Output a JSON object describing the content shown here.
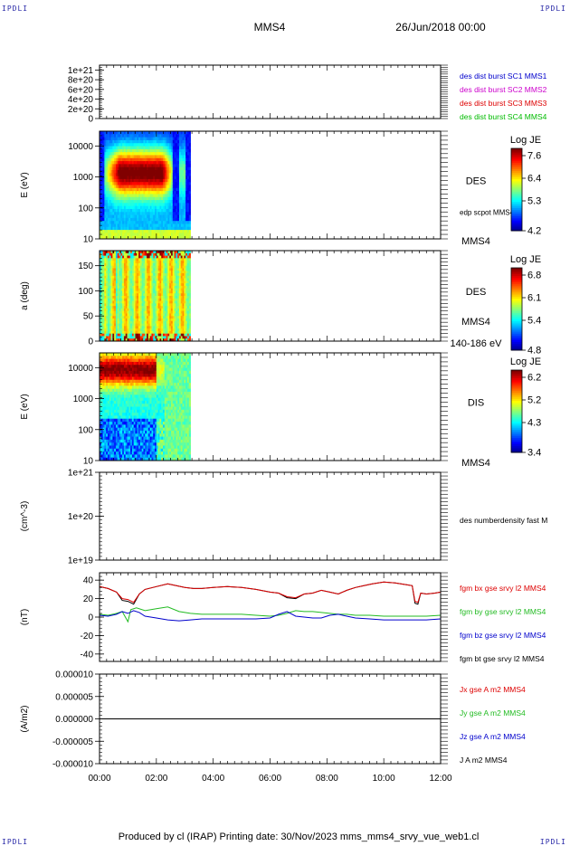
{
  "header": {
    "corner_tl": "IPDLI",
    "corner_tr": "IPDLI",
    "corner_bl": "IPDLI",
    "corner_br": "IPDLI",
    "spacecraft": "MMS4",
    "date": "26/Jun/2018 00:00"
  },
  "footer": {
    "text": "Produced by cl (IRAP)   Printing date: 30/Nov/2023   mms_mms4_srvy_vue_web1.cl"
  },
  "colors": {
    "mms1": "#0000cc",
    "mms2": "#cc00cc",
    "mms3": "#dd0000",
    "mms4": "#00bb00",
    "bx": "#dd0000",
    "by": "#22bb22",
    "bz": "#0000cc",
    "bt": "#000000"
  },
  "chart_data": [
    {
      "type": "line",
      "ytick_labels": [
        "1e+21",
        "8e+20",
        "6e+20",
        "4e+20",
        "2e+20",
        "0"
      ],
      "ylim": [
        0,
        1.1e+21
      ],
      "xlim": [
        0,
        12
      ],
      "legend": [
        "des dist burst SC1 MMS1",
        "des dist burst SC2 MMS2",
        "des dist burst SC3 MMS3",
        "des dist burst SC4 MMS4"
      ],
      "legend_colors": [
        "#0000cc",
        "#cc00cc",
        "#dd0000",
        "#00bb00"
      ],
      "baseline": 0
    },
    {
      "type": "heatmap",
      "ylabel": "E (eV)",
      "ytick_labels": [
        "10000",
        "1000",
        "100",
        "10"
      ],
      "ytick_values": [
        10000,
        1000,
        100,
        10
      ],
      "ylim": [
        10,
        30000
      ],
      "ylog": true,
      "data_xrange": [
        0,
        3.2
      ],
      "side_label": "DES",
      "side_sub": "edp scpot MMS4",
      "side_bottom": "MMS4",
      "colorbar_title": "Log JE",
      "colorbar_ticks": [
        "7.6",
        "6.4",
        "5.3",
        "4.2"
      ],
      "vrange": [
        4.2,
        7.6
      ]
    },
    {
      "type": "heatmap",
      "ylabel": "a (deg)",
      "ytick_labels": [
        "150",
        "100",
        "50",
        "0"
      ],
      "ytick_values": [
        150,
        100,
        50,
        0
      ],
      "ylim": [
        0,
        180
      ],
      "data_xrange": [
        0,
        3.2
      ],
      "side_label": "DES",
      "side_sub": "MMS4",
      "side_bottom": "140-186 eV",
      "colorbar_title": "Log JE",
      "colorbar_ticks": [
        "6.8",
        "6.1",
        "5.4",
        "4.8"
      ],
      "vrange": [
        4.8,
        6.8
      ]
    },
    {
      "type": "heatmap",
      "ylabel": "E (eV)",
      "ytick_labels": [
        "10000",
        "1000",
        "100",
        "10"
      ],
      "ytick_values": [
        10000,
        1000,
        100,
        10
      ],
      "ylim": [
        10,
        30000
      ],
      "ylog": true,
      "data_xrange": [
        0,
        3.2
      ],
      "side_label": "DIS",
      "side_bottom": "MMS4",
      "colorbar_title": "Log JE",
      "colorbar_ticks": [
        "6.2",
        "5.2",
        "4.3",
        "3.4"
      ],
      "vrange": [
        3.4,
        6.2
      ]
    },
    {
      "type": "line",
      "ylabel": "(cm^-3)",
      "ytick_labels": [
        "1e+21",
        "1e+20",
        "1e+19"
      ],
      "ytick_values": [
        1e+21,
        1e+20,
        1e+19
      ],
      "ylim": [
        1e+19,
        1e+21
      ],
      "ylog": true,
      "legend": [
        "des numberdensity fast M"
      ],
      "legend_colors": [
        "#000000"
      ]
    },
    {
      "type": "line",
      "ylabel": "(nT)",
      "ytick_labels": [
        "40",
        "20",
        "0",
        "-20",
        "-40"
      ],
      "ytick_values": [
        40,
        20,
        0,
        -20,
        -40
      ],
      "ylim": [
        -48,
        48
      ],
      "legend": [
        "fgm bx gse srvy l2 MMS4",
        "fgm by gse srvy l2 MMS4",
        "fgm bz gse srvy l2 MMS4",
        "fgm bt gse srvy l2 MMS4"
      ],
      "legend_colors": [
        "#dd0000",
        "#22bb22",
        "#0000cc",
        "#000000"
      ],
      "series": [
        {
          "name": "fgm bt gse srvy l2 MMS4",
          "key": "bt",
          "x": [
            0,
            0.3,
            0.6,
            0.8,
            1.0,
            1.2,
            1.4,
            1.6,
            2.0,
            2.4,
            2.7,
            3.0,
            3.3,
            3.6,
            4.0,
            4.5,
            5.0,
            5.5,
            6.0,
            6.3,
            6.6,
            6.9,
            7.2,
            7.5,
            7.8,
            8.1,
            8.4,
            8.7,
            9.0,
            9.3,
            9.6,
            10.0,
            10.4,
            10.8,
            11.0,
            11.1,
            11.2,
            11.3,
            11.5,
            11.8,
            12.0
          ],
          "y": [
            33,
            31,
            27,
            18,
            17,
            14,
            25,
            30,
            33,
            36,
            34,
            32,
            31,
            31,
            32,
            33,
            32,
            30,
            27,
            26,
            21,
            20,
            25,
            26,
            29,
            27,
            25,
            29,
            32,
            34,
            36,
            38,
            37,
            35,
            34,
            15,
            14,
            26,
            25,
            26,
            27
          ]
        },
        {
          "name": "fgm bx gse srvy l2 MMS4",
          "key": "bx",
          "x": [
            0,
            0.3,
            0.6,
            0.8,
            1.0,
            1.2,
            1.4,
            1.6,
            2.0,
            2.4,
            2.7,
            3.0,
            3.3,
            3.6,
            4.0,
            4.5,
            5.0,
            5.5,
            6.0,
            6.3,
            6.6,
            6.9,
            7.2,
            7.5,
            7.8,
            8.1,
            8.4,
            8.7,
            9.0,
            9.3,
            9.6,
            10.0,
            10.4,
            10.8,
            11.0,
            11.1,
            11.2,
            11.3,
            11.5,
            11.8,
            12.0
          ],
          "y": [
            33,
            31,
            27,
            20,
            19,
            16,
            25,
            30,
            33,
            36,
            34,
            32,
            31,
            31,
            32,
            33,
            32,
            30,
            27,
            26,
            22,
            21,
            25,
            26,
            29,
            27,
            25,
            29,
            32,
            34,
            36,
            38,
            37,
            35,
            34,
            17,
            16,
            26,
            25,
            26,
            27
          ]
        },
        {
          "name": "fgm by gse srvy l2 MMS4",
          "key": "by",
          "x": [
            0,
            0.3,
            0.6,
            0.8,
            1.0,
            1.1,
            1.3,
            1.6,
            2.0,
            2.4,
            2.8,
            3.2,
            3.6,
            4.0,
            4.5,
            5.0,
            5.5,
            6.0,
            6.3,
            6.6,
            6.9,
            7.2,
            7.5,
            7.8,
            8.1,
            8.4,
            8.7,
            9.0,
            9.5,
            10.0,
            10.5,
            11.0,
            11.5,
            12.0
          ],
          "y": [
            3,
            2,
            4,
            6,
            -5,
            8,
            10,
            7,
            9,
            11,
            6,
            4,
            3,
            3,
            3,
            3,
            2,
            1,
            2,
            4,
            7,
            6,
            6,
            5,
            4,
            3,
            3,
            2,
            2,
            1,
            1,
            1,
            1,
            2
          ]
        },
        {
          "name": "fgm bz gse srvy l2 MMS4",
          "key": "bz",
          "x": [
            0,
            0.3,
            0.6,
            0.8,
            1.0,
            1.2,
            1.4,
            1.6,
            2.0,
            2.4,
            2.8,
            3.2,
            3.6,
            4.0,
            4.5,
            5.0,
            5.5,
            6.0,
            6.3,
            6.6,
            6.9,
            7.2,
            7.5,
            7.8,
            8.1,
            8.4,
            8.7,
            9.0,
            9.5,
            10.0,
            10.5,
            11.0,
            11.5,
            12.0
          ],
          "y": [
            2,
            1,
            3,
            6,
            4,
            7,
            5,
            1,
            -1,
            -3,
            -4,
            -3,
            -2,
            -2,
            -2,
            -2,
            -2,
            -1,
            3,
            6,
            1,
            0,
            -1,
            -1,
            2,
            3,
            1,
            -1,
            -2,
            -3,
            -3,
            -3,
            -3,
            -2
          ]
        }
      ]
    },
    {
      "type": "line",
      "ylabel": "(A/m2)",
      "ytick_labels": [
        "0.000010",
        "0.000005",
        "0.000000",
        "-0.000005",
        "-0.000010"
      ],
      "ytick_values": [
        1e-05,
        5e-06,
        0,
        -5e-06,
        -1e-05
      ],
      "ylim": [
        -1e-05,
        1e-05
      ],
      "xlabels": [
        "00:00",
        "02:00",
        "04:00",
        "06:00",
        "08:00",
        "10:00",
        "12:00"
      ],
      "xlim": [
        0,
        12
      ],
      "legend": [
        "Jx gse A m2 MMS4",
        "Jy gse A m2 MMS4",
        "Jz gse A m2 MMS4",
        "J A m2 MMS4"
      ],
      "legend_colors": [
        "#dd0000",
        "#22bb22",
        "#0000cc",
        "#000000"
      ],
      "series": [
        {
          "name": "J A m2 MMS4",
          "x": [
            0,
            12
          ],
          "y": [
            0,
            0
          ]
        }
      ]
    }
  ]
}
